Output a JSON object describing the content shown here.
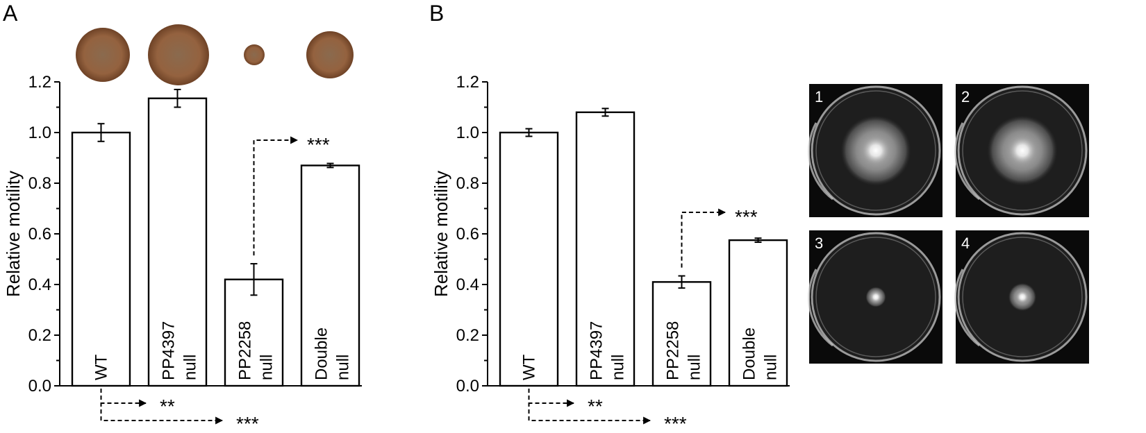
{
  "chart_data": [
    {
      "type": "bar",
      "panel": "A",
      "ylabel": "Relative motility",
      "ylim": [
        0,
        1.2
      ],
      "yticks": [
        "0.0",
        "0.2",
        "0.4",
        "0.6",
        "0.8",
        "1.0",
        "1.2"
      ],
      "categories": [
        {
          "line1": "WT",
          "line2": ""
        },
        {
          "line1": "PP4397",
          "line2": "null"
        },
        {
          "line1": "PP2258",
          "line2": "null"
        },
        {
          "line1": "Double",
          "line2": "null"
        }
      ],
      "values": [
        1.0,
        1.135,
        0.42,
        0.87
      ],
      "errors": [
        0.035,
        0.035,
        0.062,
        0.008
      ],
      "colony_sizes": [
        1.0,
        1.2,
        0.4,
        0.92
      ],
      "comparisons": [
        {
          "from": 2,
          "to": 3,
          "label": "***",
          "position": "above"
        },
        {
          "from": 0,
          "to": 1,
          "label": "**",
          "position": "below"
        },
        {
          "from": 0,
          "to": 2,
          "label": "***",
          "position": "below"
        }
      ]
    },
    {
      "type": "bar",
      "panel": "B",
      "ylabel": "Relative motility",
      "ylim": [
        0,
        1.2
      ],
      "yticks": [
        "0.0",
        "0.2",
        "0.4",
        "0.6",
        "0.8",
        "1.0",
        "1.2"
      ],
      "categories": [
        {
          "line1": "WT",
          "line2": ""
        },
        {
          "line1": "PP4397",
          "line2": "null"
        },
        {
          "line1": "PP2258",
          "line2": "null"
        },
        {
          "line1": "Double",
          "line2": "null"
        }
      ],
      "values": [
        1.0,
        1.08,
        0.41,
        0.575
      ],
      "errors": [
        0.015,
        0.015,
        0.024,
        0.008
      ],
      "comparisons": [
        {
          "from": 2,
          "to": 3,
          "label": "***",
          "position": "above"
        },
        {
          "from": 0,
          "to": 1,
          "label": "**",
          "position": "below"
        },
        {
          "from": 0,
          "to": 2,
          "label": "***",
          "position": "below"
        }
      ]
    }
  ],
  "plates": [
    {
      "label": "1",
      "swarm": 0.55,
      "core": 0.22
    },
    {
      "label": "2",
      "swarm": 0.55,
      "core": 0.22
    },
    {
      "label": "3",
      "swarm": 0.16,
      "core": 0.09
    },
    {
      "label": "4",
      "swarm": 0.22,
      "core": 0.1
    }
  ]
}
